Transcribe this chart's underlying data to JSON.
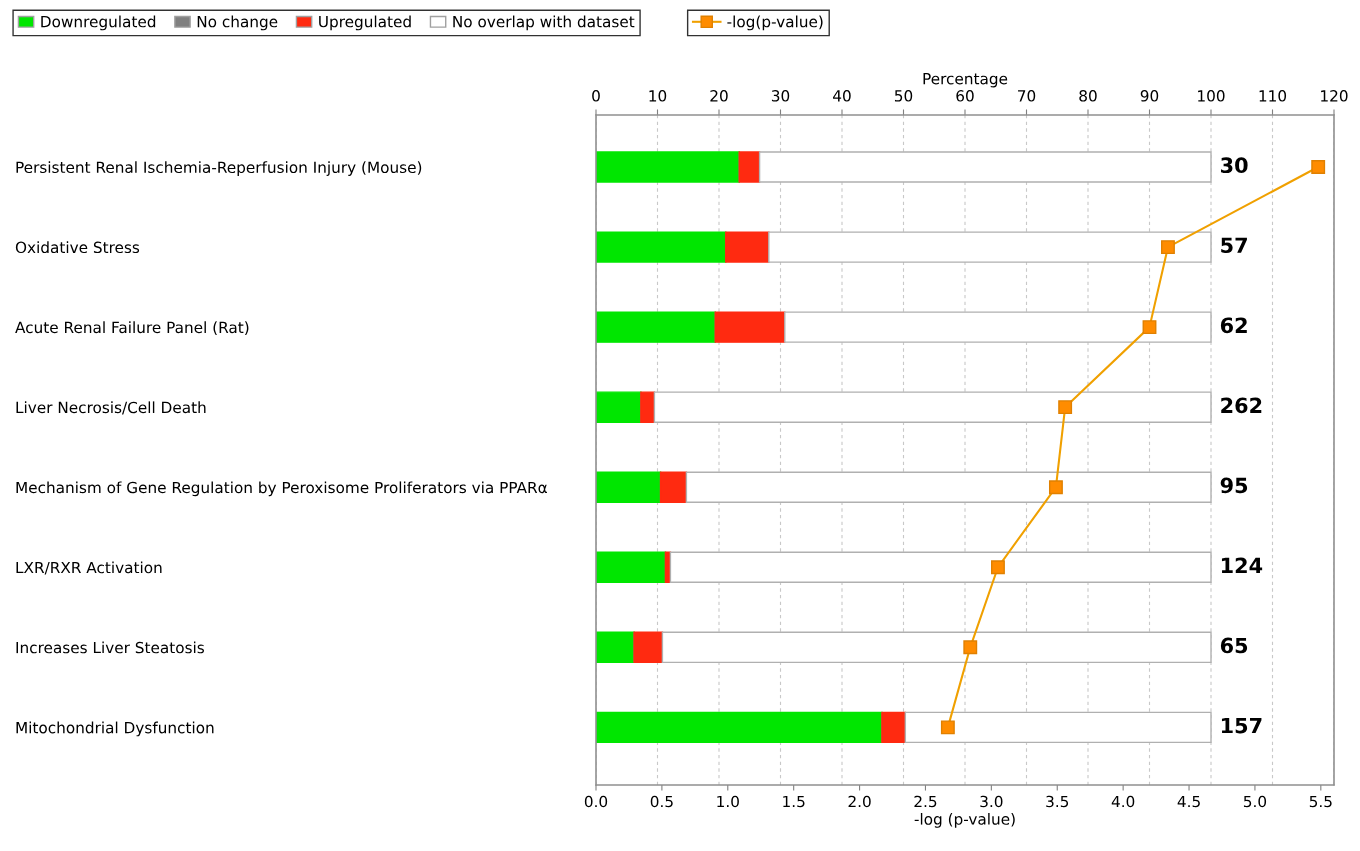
{
  "chart_data": {
    "type": "bar",
    "orientation": "horizontal",
    "stacked": true,
    "categories": [
      "Persistent Renal Ischemia-Reperfusion Injury (Mouse)",
      "Oxidative Stress",
      "Acute Renal Failure Panel (Rat)",
      "Liver Necrosis/Cell Death",
      "Mechanism of Gene Regulation by Peroxisome Proliferators via PPARα",
      "LXR/RXR Activation",
      "Increases Liver Steatosis",
      "Mitochondrial Dysfunction"
    ],
    "series": [
      {
        "name": "Downregulated",
        "color": "#00e600",
        "values": [
          23.3,
          21.1,
          19.4,
          7.3,
          10.5,
          11.3,
          6.2,
          46.5
        ]
      },
      {
        "name": "No change",
        "color": "#808080",
        "values": [
          0,
          0,
          0,
          0,
          0,
          0,
          0,
          0
        ]
      },
      {
        "name": "Upregulated",
        "color": "#ff2a10",
        "values": [
          3.3,
          7.0,
          11.3,
          2.2,
          4.2,
          0.8,
          4.6,
          3.8
        ]
      },
      {
        "name": "No overlap with dataset",
        "color": "#ffffff",
        "values": [
          73.4,
          71.9,
          69.3,
          90.5,
          85.3,
          87.9,
          89.2,
          49.7
        ]
      },
      {
        "name": "-log(p-value)",
        "type": "line",
        "color": "#f0a000",
        "axis": "x2",
        "marker": "square",
        "values": [
          5.48,
          4.34,
          4.2,
          3.56,
          3.49,
          3.05,
          2.84,
          2.67
        ]
      }
    ],
    "annotations": [
      "30",
      "57",
      "62",
      "262",
      "95",
      "124",
      "65",
      "157"
    ],
    "xlabel": "Percentage",
    "xlim": [
      0,
      120
    ],
    "xticks": [
      0,
      10,
      20,
      30,
      40,
      50,
      60,
      70,
      80,
      90,
      100,
      110,
      120
    ],
    "x2label": "-log (p-value)",
    "x2lim": [
      0,
      5.6
    ],
    "x2ticks": [
      {
        "value": 0,
        "label": "0.0"
      },
      0.5,
      {
        "value": 1,
        "label": "1.0"
      },
      1.5,
      {
        "value": 2,
        "label": "2.0"
      },
      2.5,
      {
        "value": 3,
        "label": "3.0"
      },
      3.5,
      {
        "value": 4,
        "label": "4.0"
      },
      4.5,
      {
        "value": 5,
        "label": "5.0"
      },
      5.5
    ],
    "grid": "x",
    "legend": "top left"
  }
}
